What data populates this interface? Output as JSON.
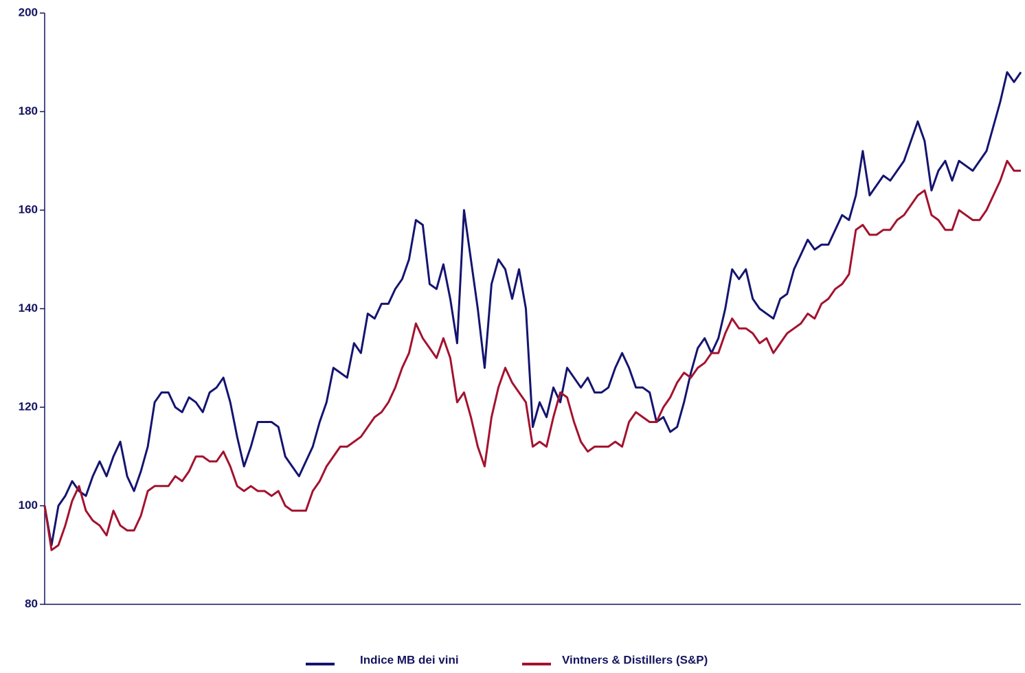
{
  "chart_data": {
    "type": "line",
    "categories": [
      null,
      null,
      null,
      null,
      null,
      null,
      null,
      null,
      null,
      null,
      null,
      null,
      null,
      null,
      null,
      null,
      null,
      null,
      null,
      null,
      null,
      null,
      null,
      null,
      null,
      null,
      null,
      null,
      null,
      null,
      null,
      null,
      null,
      null,
      null,
      null,
      null,
      null,
      null,
      null,
      null,
      null,
      null,
      null,
      null,
      null,
      null,
      null,
      null,
      null,
      null,
      null,
      null,
      null,
      null,
      null,
      null,
      null,
      null,
      null,
      null,
      null,
      null,
      null,
      null,
      null,
      null,
      null,
      null,
      null,
      null,
      null,
      null,
      null,
      null,
      null,
      null,
      null,
      null,
      null,
      null,
      null,
      null,
      null,
      null,
      null,
      null,
      null,
      null,
      null,
      null,
      null,
      null,
      null,
      null,
      null,
      null,
      null,
      null,
      null,
      null,
      null,
      null,
      null,
      null,
      null,
      null,
      null,
      null,
      null,
      null,
      null,
      null,
      null,
      null,
      null,
      null,
      null,
      null,
      null,
      null,
      null,
      null,
      null,
      null,
      null,
      null,
      null,
      null,
      null,
      null,
      null,
      null,
      null,
      null,
      null,
      null,
      null,
      null,
      null,
      null,
      null,
      null
    ],
    "series": [
      {
        "name": "Indice MB dei vini",
        "color": "#141470",
        "values": [
          100,
          92,
          100,
          102,
          105,
          103,
          102,
          106,
          109,
          106,
          110,
          113,
          106,
          103,
          107,
          112,
          121,
          123,
          123,
          120,
          119,
          122,
          121,
          119,
          123,
          124,
          126,
          121,
          114,
          108,
          112,
          117,
          117,
          117,
          116,
          110,
          108,
          106,
          109,
          112,
          117,
          121,
          128,
          127,
          126,
          133,
          131,
          139,
          138,
          141,
          141,
          144,
          146,
          150,
          158,
          157,
          145,
          144,
          149,
          142,
          133,
          160,
          150,
          140,
          128,
          145,
          150,
          148,
          142,
          148,
          140,
          116,
          121,
          118,
          124,
          121,
          128,
          126,
          124,
          126,
          123,
          123,
          124,
          128,
          131,
          128,
          124,
          124,
          123,
          117,
          118,
          115,
          116,
          121,
          127,
          132,
          134,
          131,
          134,
          140,
          148,
          146,
          148,
          142,
          140,
          139,
          138,
          142,
          143,
          148,
          151,
          154,
          152,
          153,
          153,
          156,
          159,
          158,
          163,
          172,
          163,
          165,
          167,
          166,
          168,
          170,
          174,
          178,
          174,
          164,
          168,
          170,
          166,
          170,
          169,
          168,
          170,
          172,
          177,
          182,
          188,
          186,
          188
        ]
      },
      {
        "name": "Vintners & Distillers (S&P)",
        "color": "#a3122e",
        "values": [
          100,
          91,
          92,
          96,
          101,
          104,
          99,
          97,
          96,
          94,
          99,
          96,
          95,
          95,
          98,
          103,
          104,
          104,
          104,
          106,
          105,
          107,
          110,
          110,
          109,
          109,
          111,
          108,
          104,
          103,
          104,
          103,
          103,
          102,
          103,
          100,
          99,
          99,
          99,
          103,
          105,
          108,
          110,
          112,
          112,
          113,
          114,
          116,
          118,
          119,
          121,
          124,
          128,
          131,
          137,
          134,
          132,
          130,
          134,
          130,
          121,
          123,
          118,
          112,
          108,
          118,
          124,
          128,
          125,
          123,
          121,
          112,
          113,
          112,
          118,
          123,
          122,
          117,
          113,
          111,
          112,
          112,
          112,
          113,
          112,
          117,
          119,
          118,
          117,
          117,
          120,
          122,
          125,
          127,
          126,
          128,
          129,
          131,
          131,
          135,
          138,
          136,
          136,
          135,
          133,
          134,
          131,
          133,
          135,
          136,
          137,
          139,
          138,
          141,
          142,
          144,
          145,
          147,
          156,
          157,
          155,
          155,
          156,
          156,
          158,
          159,
          161,
          163,
          164,
          159,
          158,
          156,
          156,
          160,
          159,
          158,
          158,
          160,
          163,
          166,
          170,
          168,
          168
        ]
      }
    ],
    "ylim": [
      80,
      200
    ],
    "yticks": [
      80,
      100,
      120,
      140,
      160,
      180,
      200
    ],
    "grid": false,
    "legend": "bottom"
  }
}
